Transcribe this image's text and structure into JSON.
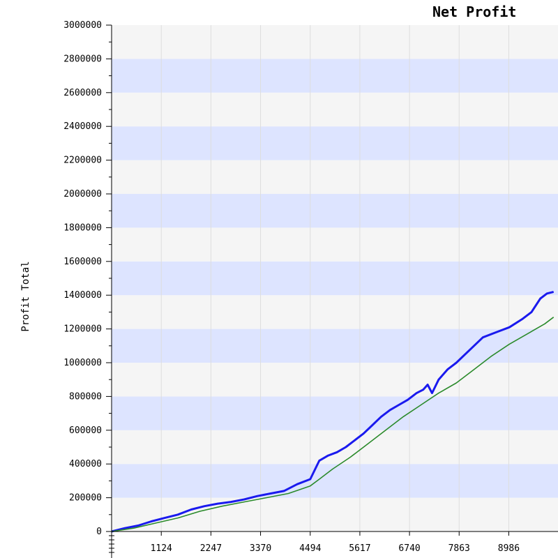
{
  "chart_data": {
    "type": "line",
    "title": "Net Profit",
    "xlabel": "",
    "ylabel": "Profit Total",
    "x_ticks": [
      "1124",
      "2247",
      "3370",
      "4494",
      "5617",
      "6740",
      "7863",
      "8986"
    ],
    "y_ticks": [
      "0",
      "200000",
      "400000",
      "600000",
      "800000",
      "1000000",
      "1200000",
      "1400000",
      "1600000",
      "1800000",
      "2000000",
      "2200000",
      "2400000",
      "2600000",
      "2800000",
      "3000000"
    ],
    "xlim": [
      0,
      10100
    ],
    "ylim": [
      0,
      3000000
    ],
    "grid": true,
    "colors": {
      "band_blue": "#dde4ff",
      "band_light": "#f5f5f5",
      "gridline": "#dddddd",
      "axis": "#000000",
      "series_blue": "#1a1aee",
      "series_green": "#2a8a2a"
    },
    "series": [
      {
        "color": "#1a1aee",
        "points": [
          [
            0,
            0
          ],
          [
            300,
            20000
          ],
          [
            600,
            35000
          ],
          [
            900,
            60000
          ],
          [
            1200,
            80000
          ],
          [
            1500,
            100000
          ],
          [
            1800,
            130000
          ],
          [
            2100,
            150000
          ],
          [
            2400,
            165000
          ],
          [
            2700,
            175000
          ],
          [
            3000,
            190000
          ],
          [
            3300,
            210000
          ],
          [
            3600,
            225000
          ],
          [
            3900,
            240000
          ],
          [
            4200,
            280000
          ],
          [
            4494,
            310000
          ],
          [
            4700,
            420000
          ],
          [
            4900,
            450000
          ],
          [
            5100,
            470000
          ],
          [
            5300,
            500000
          ],
          [
            5500,
            540000
          ],
          [
            5700,
            580000
          ],
          [
            5900,
            630000
          ],
          [
            6100,
            680000
          ],
          [
            6300,
            720000
          ],
          [
            6500,
            750000
          ],
          [
            6700,
            780000
          ],
          [
            6900,
            820000
          ],
          [
            7050,
            840000
          ],
          [
            7150,
            870000
          ],
          [
            7250,
            820000
          ],
          [
            7400,
            900000
          ],
          [
            7600,
            960000
          ],
          [
            7800,
            1000000
          ],
          [
            8000,
            1050000
          ],
          [
            8200,
            1100000
          ],
          [
            8400,
            1150000
          ],
          [
            8700,
            1180000
          ],
          [
            9000,
            1210000
          ],
          [
            9300,
            1260000
          ],
          [
            9500,
            1300000
          ],
          [
            9700,
            1380000
          ],
          [
            9850,
            1410000
          ],
          [
            10000,
            1420000
          ]
        ]
      },
      {
        "color": "#2a8a2a",
        "points": [
          [
            0,
            0
          ],
          [
            500,
            20000
          ],
          [
            1000,
            50000
          ],
          [
            1500,
            80000
          ],
          [
            2000,
            120000
          ],
          [
            2500,
            150000
          ],
          [
            3000,
            175000
          ],
          [
            3500,
            200000
          ],
          [
            4000,
            225000
          ],
          [
            4494,
            270000
          ],
          [
            4700,
            310000
          ],
          [
            5000,
            370000
          ],
          [
            5400,
            440000
          ],
          [
            5800,
            520000
          ],
          [
            6200,
            600000
          ],
          [
            6600,
            680000
          ],
          [
            7000,
            750000
          ],
          [
            7400,
            820000
          ],
          [
            7800,
            880000
          ],
          [
            8200,
            960000
          ],
          [
            8600,
            1040000
          ],
          [
            9000,
            1110000
          ],
          [
            9400,
            1170000
          ],
          [
            9800,
            1230000
          ],
          [
            10000,
            1270000
          ]
        ]
      }
    ]
  }
}
